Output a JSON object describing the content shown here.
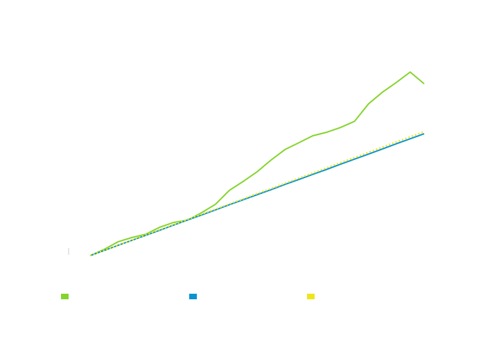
{
  "chart_data": {
    "type": "line",
    "x": [
      0,
      1,
      2,
      3,
      4,
      5,
      6,
      7,
      8,
      9,
      10,
      11,
      12,
      13,
      14,
      15,
      16,
      17,
      18,
      19,
      20,
      21,
      22,
      23,
      24
    ],
    "series": [
      {
        "color": "#84d42c",
        "dash": false,
        "values": [
          0,
          3.3,
          7.4,
          9.7,
          11.5,
          15.2,
          17.8,
          19.0,
          23.0,
          27.5,
          35.0,
          39.8,
          45.0,
          51.3,
          56.9,
          60.6,
          64.3,
          66.2,
          68.8,
          72.1,
          81.4,
          87.7,
          92.9,
          98.5,
          92.2
        ]
      },
      {
        "color": "#0a94cf",
        "dash": false,
        "values": [
          0,
          2.7,
          5.5,
          8.2,
          10.9,
          13.6,
          16.4,
          19.1,
          21.8,
          24.5,
          27.3,
          30.0,
          32.7,
          35.4,
          38.2,
          40.9,
          43.6,
          46.3,
          49.1,
          51.8,
          54.5,
          57.2,
          60.0,
          62.7,
          65.4
        ]
      },
      {
        "color": "#ede61a",
        "dash": true,
        "values": [
          0,
          2.8,
          5.5,
          8.3,
          11.1,
          13.9,
          16.6,
          19.4,
          22.2,
          24.9,
          27.7,
          30.5,
          33.3,
          36.0,
          38.8,
          41.6,
          44.3,
          47.1,
          49.9,
          52.6,
          55.4,
          58.2,
          61.0,
          63.7,
          66.5
        ]
      }
    ],
    "xlim": [
      0,
      24
    ],
    "ylim": [
      0,
      100
    ],
    "legend": "bottom"
  }
}
